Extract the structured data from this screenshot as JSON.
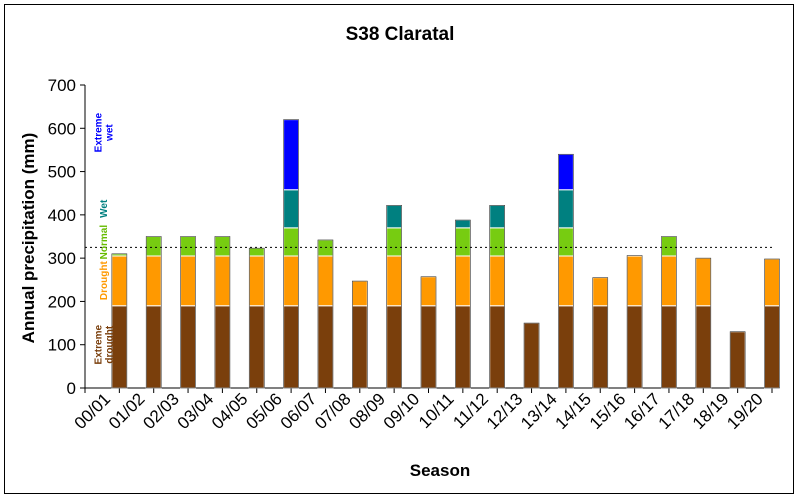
{
  "chart_data": {
    "type": "bar",
    "stacked": true,
    "title": "S38 Claratal",
    "xlabel": "Season",
    "ylabel": "Annual precipitation (mm)",
    "ylim": [
      0,
      700
    ],
    "yticks": [
      0,
      100,
      200,
      300,
      400,
      500,
      600,
      700
    ],
    "grid": false,
    "categories": [
      "00/01",
      "01/02",
      "02/03",
      "03/04",
      "04/05",
      "05/06",
      "06/07",
      "07/08",
      "08/09",
      "09/10",
      "10/11",
      "11/12",
      "12/13",
      "13/14",
      "14/15",
      "15/16",
      "16/17",
      "17/18",
      "18/19",
      "19/20"
    ],
    "totals": [
      310,
      350,
      350,
      350,
      323,
      620,
      342,
      247,
      422,
      257,
      388,
      422,
      150,
      540,
      255,
      306,
      350,
      300,
      130,
      298
    ],
    "reference_line": {
      "value": 325,
      "style": "dotted"
    },
    "class_bounds": [
      0,
      190,
      305,
      370,
      458
    ],
    "bands": [
      {
        "key": "extreme_drought",
        "label": "Extreme drought",
        "color": "#7a3f0c",
        "text_color": "#7a3f0c"
      },
      {
        "key": "drought",
        "label": "Drought",
        "color": "#ff9900",
        "text_color": "#ff9900"
      },
      {
        "key": "normal",
        "label": "Normal",
        "color": "#77cc11",
        "text_color": "#66bb00"
      },
      {
        "key": "wet",
        "label": "Wet",
        "color": "#008080",
        "text_color": "#008080"
      },
      {
        "key": "extreme_wet",
        "label": "Extreme wet",
        "color": "#0000ff",
        "text_color": "#0000ff"
      }
    ]
  }
}
